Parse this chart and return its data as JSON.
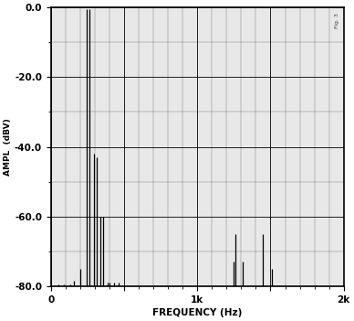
{
  "xlabel": "FREQUENCY (Hz)",
  "ylabel": "AMPL  (dBV)",
  "xlim": [
    0,
    2000
  ],
  "ylim": [
    -80,
    0
  ],
  "yticks": [
    0.0,
    -20.0,
    -40.0,
    -60.0,
    -80.0
  ],
  "ytick_labels": [
    "0.0",
    "-20.0",
    "-40.0",
    "-60.0",
    "-80.0"
  ],
  "xtick_positions": [
    0,
    500,
    1000,
    1500,
    2000
  ],
  "xtick_labels": [
    "0",
    "",
    "1k",
    "",
    "2k"
  ],
  "fig_bg_color": "#ffffff",
  "plot_bg_color": "#e8e8e8",
  "grid_major_color": "#000000",
  "grid_minor_color": "#aaaaaa",
  "spine_color": "#000000",
  "bar_color": "#000000",
  "annotation_text": "Fig. 3",
  "spurs": [
    {
      "freq": 50,
      "amp": -79.5
    },
    {
      "freq": 90,
      "amp": -79.5
    },
    {
      "freq": 130,
      "amp": -79.5
    },
    {
      "freq": 160,
      "amp": -78.5
    },
    {
      "freq": 200,
      "amp": -75
    },
    {
      "freq": 247,
      "amp": -0.5
    },
    {
      "freq": 263,
      "amp": -0.5
    },
    {
      "freq": 294,
      "amp": -42
    },
    {
      "freq": 310,
      "amp": -43
    },
    {
      "freq": 340,
      "amp": -60
    },
    {
      "freq": 355,
      "amp": -60
    },
    {
      "freq": 385,
      "amp": -79
    },
    {
      "freq": 402,
      "amp": -79
    },
    {
      "freq": 432,
      "amp": -79
    },
    {
      "freq": 465,
      "amp": -79
    },
    {
      "freq": 1247,
      "amp": -73
    },
    {
      "freq": 1263,
      "amp": -65
    },
    {
      "freq": 1310,
      "amp": -73
    },
    {
      "freq": 1450,
      "amp": -65
    },
    {
      "freq": 1510,
      "amp": -75
    }
  ]
}
